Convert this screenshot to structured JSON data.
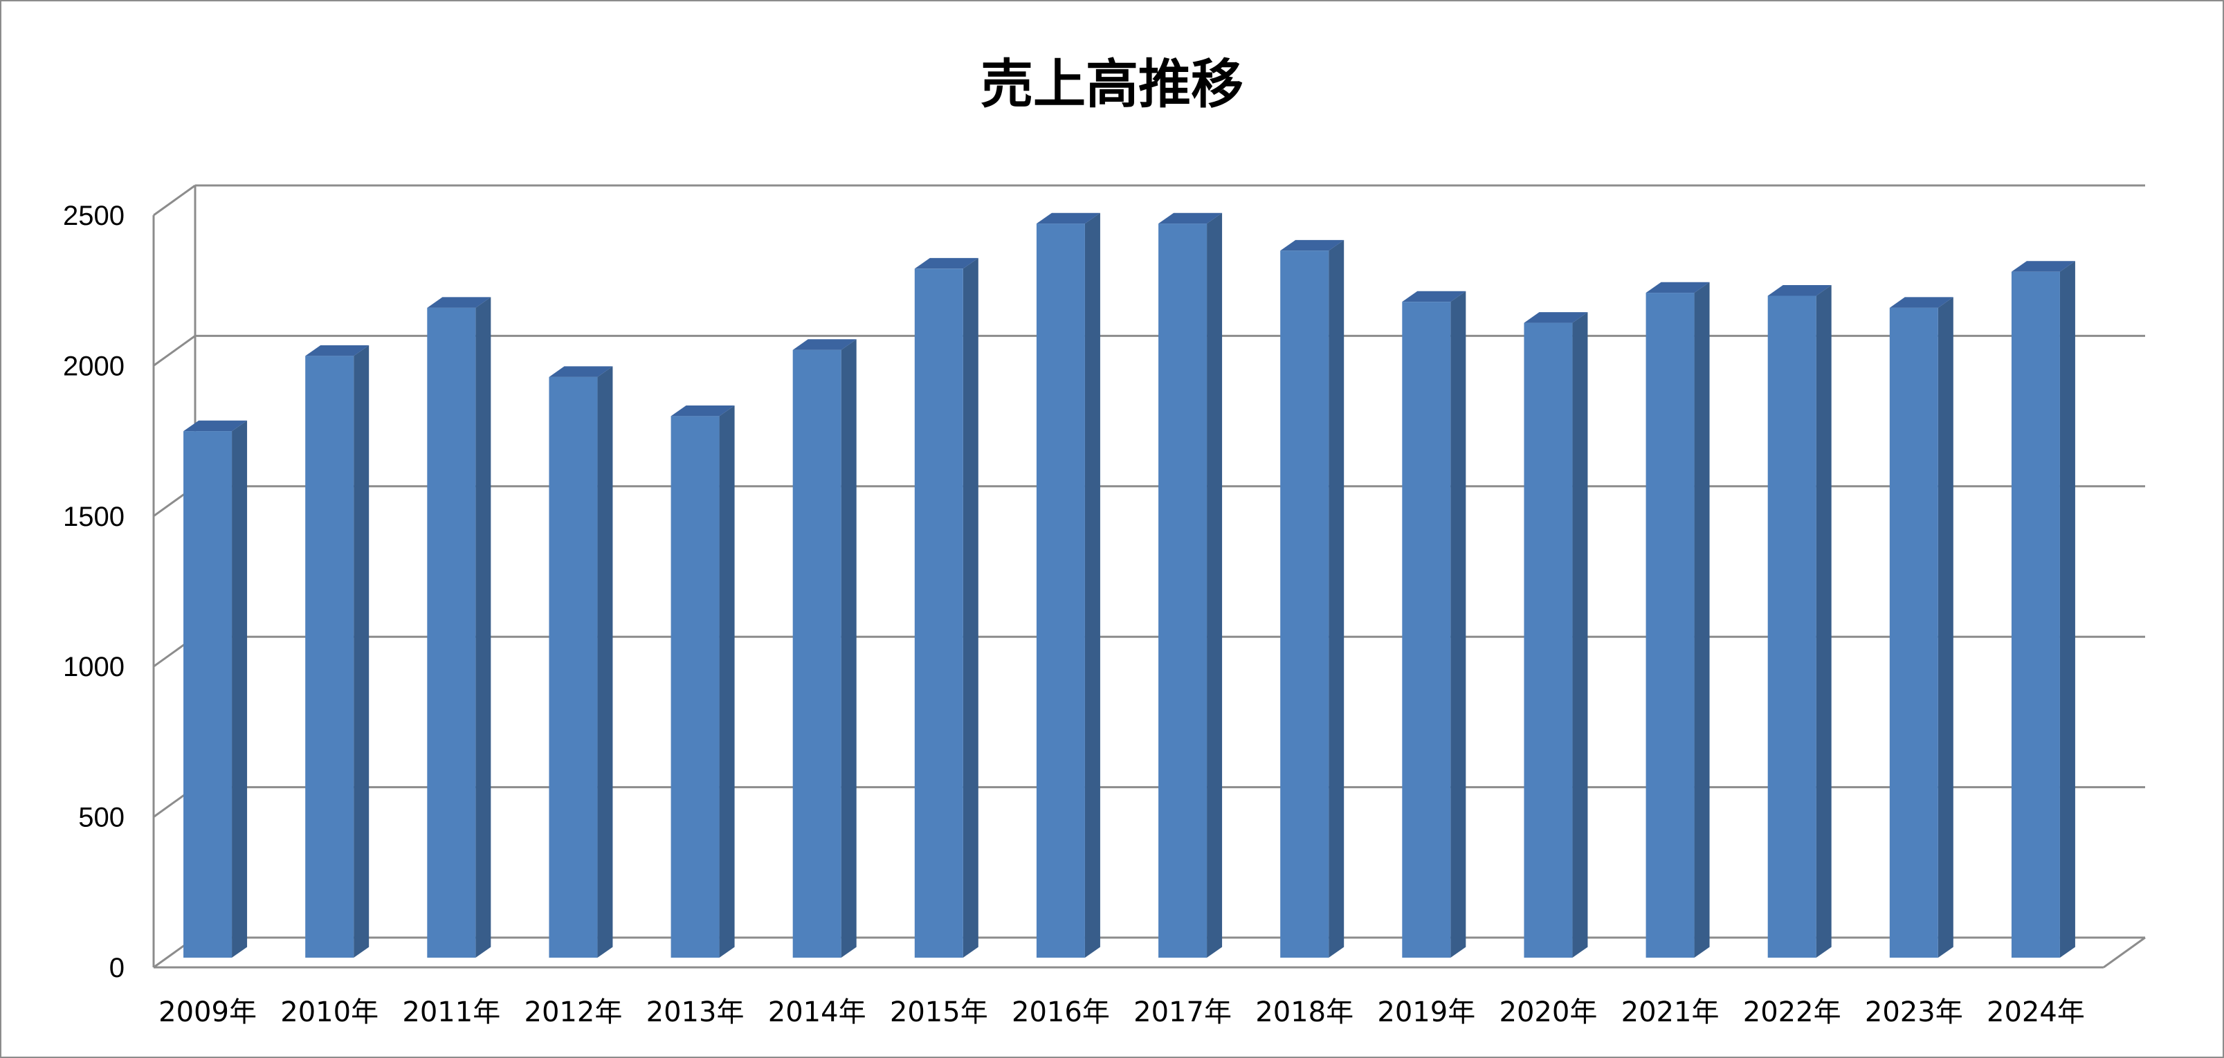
{
  "chart_data": {
    "type": "bar",
    "title": "売上高推移",
    "categories": [
      "2009年",
      "2010年",
      "2011年",
      "2012年",
      "2013年",
      "2014年",
      "2015年",
      "2016年",
      "2017年",
      "2018年",
      "2019年",
      "2020年",
      "2021年",
      "2022年",
      "2023年",
      "2024年"
    ],
    "values": [
      1750,
      2000,
      2160,
      1930,
      1800,
      2020,
      2290,
      2440,
      2440,
      2350,
      2180,
      2110,
      2210,
      2200,
      2160,
      2280
    ],
    "ylim": [
      0,
      2500
    ],
    "yticks": [
      0,
      500,
      1000,
      1500,
      2000,
      2500
    ],
    "grid": true,
    "style": "3d-column",
    "colors": {
      "bar_front": "#4f81bd",
      "bar_side": "#385d8a",
      "bar_top": "#3b64a0",
      "grid": "#8c8c8c"
    }
  }
}
